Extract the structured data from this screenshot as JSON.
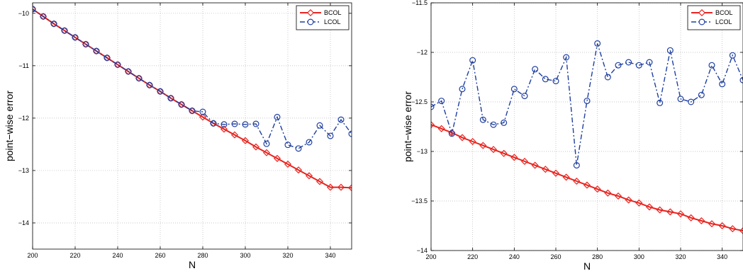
{
  "chart_data": [
    {
      "type": "line",
      "xlabel": "N",
      "ylabel": "point−wise error",
      "xlim": [
        200,
        350
      ],
      "ylim": [
        -14.5,
        -9.8
      ],
      "xticks": [
        200,
        220,
        240,
        260,
        280,
        300,
        320,
        340
      ],
      "xtick_labels": [
        "200",
        "220",
        "240",
        "260",
        "280",
        "300",
        "320",
        "340"
      ],
      "yticks": [
        -10,
        -11,
        -12,
        -13,
        -14
      ],
      "ytick_labels": [
        "−10",
        "−11",
        "−12",
        "−13",
        "−14"
      ],
      "grid": true,
      "legend_position": "top-right",
      "x": [
        200,
        205,
        210,
        215,
        220,
        225,
        230,
        235,
        240,
        245,
        250,
        255,
        260,
        265,
        270,
        275,
        280,
        285,
        290,
        295,
        300,
        305,
        310,
        315,
        320,
        325,
        330,
        335,
        340,
        345,
        350
      ],
      "series": [
        {
          "name": "BCOL",
          "color": "#e8231e",
          "marker": "diamond",
          "line_style": "solid",
          "values": [
            -9.92,
            -10.06,
            -10.2,
            -10.33,
            -10.46,
            -10.59,
            -10.72,
            -10.85,
            -10.98,
            -11.11,
            -11.24,
            -11.37,
            -11.49,
            -11.62,
            -11.74,
            -11.86,
            -11.98,
            -12.1,
            -12.21,
            -12.32,
            -12.43,
            -12.55,
            -12.66,
            -12.77,
            -12.88,
            -12.99,
            -13.1,
            -13.21,
            -13.32,
            -13.32,
            -13.33
          ]
        },
        {
          "name": "LCOL",
          "color": "#1f3fa0",
          "marker": "circle",
          "line_style": "dashdot",
          "values": [
            -9.92,
            -10.06,
            -10.2,
            -10.33,
            -10.46,
            -10.59,
            -10.72,
            -10.85,
            -10.98,
            -11.11,
            -11.24,
            -11.37,
            -11.49,
            -11.62,
            -11.74,
            -11.86,
            -11.88,
            -12.1,
            -12.12,
            -12.11,
            -12.12,
            -12.11,
            -12.49,
            -11.98,
            -12.51,
            -12.58,
            -12.46,
            -12.14,
            -12.34,
            -12.03,
            -12.3
          ]
        }
      ]
    },
    {
      "type": "line",
      "xlabel": "N",
      "ylabel": "point−wise error",
      "xlim": [
        200,
        350
      ],
      "ylim": [
        -14,
        -11.5
      ],
      "xticks": [
        200,
        220,
        240,
        260,
        280,
        300,
        320,
        340
      ],
      "xtick_labels": [
        "200",
        "220",
        "240",
        "260",
        "280",
        "300",
        "320",
        "340"
      ],
      "yticks": [
        -11.5,
        -12,
        -12.5,
        -13,
        -13.5,
        -14
      ],
      "ytick_labels": [
        "−11.5",
        "−12",
        "−12.5",
        "−13",
        "−13.5",
        "−14"
      ],
      "grid": true,
      "legend_position": "top-right",
      "x": [
        200,
        205,
        210,
        215,
        220,
        225,
        230,
        235,
        240,
        245,
        250,
        255,
        260,
        265,
        270,
        275,
        280,
        285,
        290,
        295,
        300,
        305,
        310,
        315,
        320,
        325,
        330,
        335,
        340,
        345,
        350
      ],
      "series": [
        {
          "name": "BCOL",
          "color": "#e8231e",
          "marker": "diamond",
          "line_style": "solid",
          "values": [
            -12.73,
            -12.77,
            -12.81,
            -12.86,
            -12.9,
            -12.94,
            -12.98,
            -13.02,
            -13.06,
            -13.1,
            -13.14,
            -13.18,
            -13.22,
            -13.26,
            -13.3,
            -13.34,
            -13.38,
            -13.42,
            -13.45,
            -13.49,
            -13.52,
            -13.56,
            -13.59,
            -13.61,
            -13.63,
            -13.67,
            -13.7,
            -13.73,
            -13.75,
            -13.78,
            -13.8
          ]
        },
        {
          "name": "LCOL",
          "color": "#1f3fa0",
          "marker": "circle",
          "line_style": "dashdot",
          "values": [
            -12.55,
            -12.49,
            -12.82,
            -12.37,
            -12.08,
            -12.68,
            -12.73,
            -12.71,
            -12.37,
            -12.44,
            -12.17,
            -12.27,
            -12.29,
            -12.05,
            -13.14,
            -12.49,
            -11.91,
            -12.25,
            -12.13,
            -12.1,
            -12.13,
            -12.1,
            -12.51,
            -11.98,
            -12.47,
            -12.5,
            -12.43,
            -12.13,
            -12.32,
            -12.03,
            -12.28
          ]
        }
      ]
    }
  ]
}
